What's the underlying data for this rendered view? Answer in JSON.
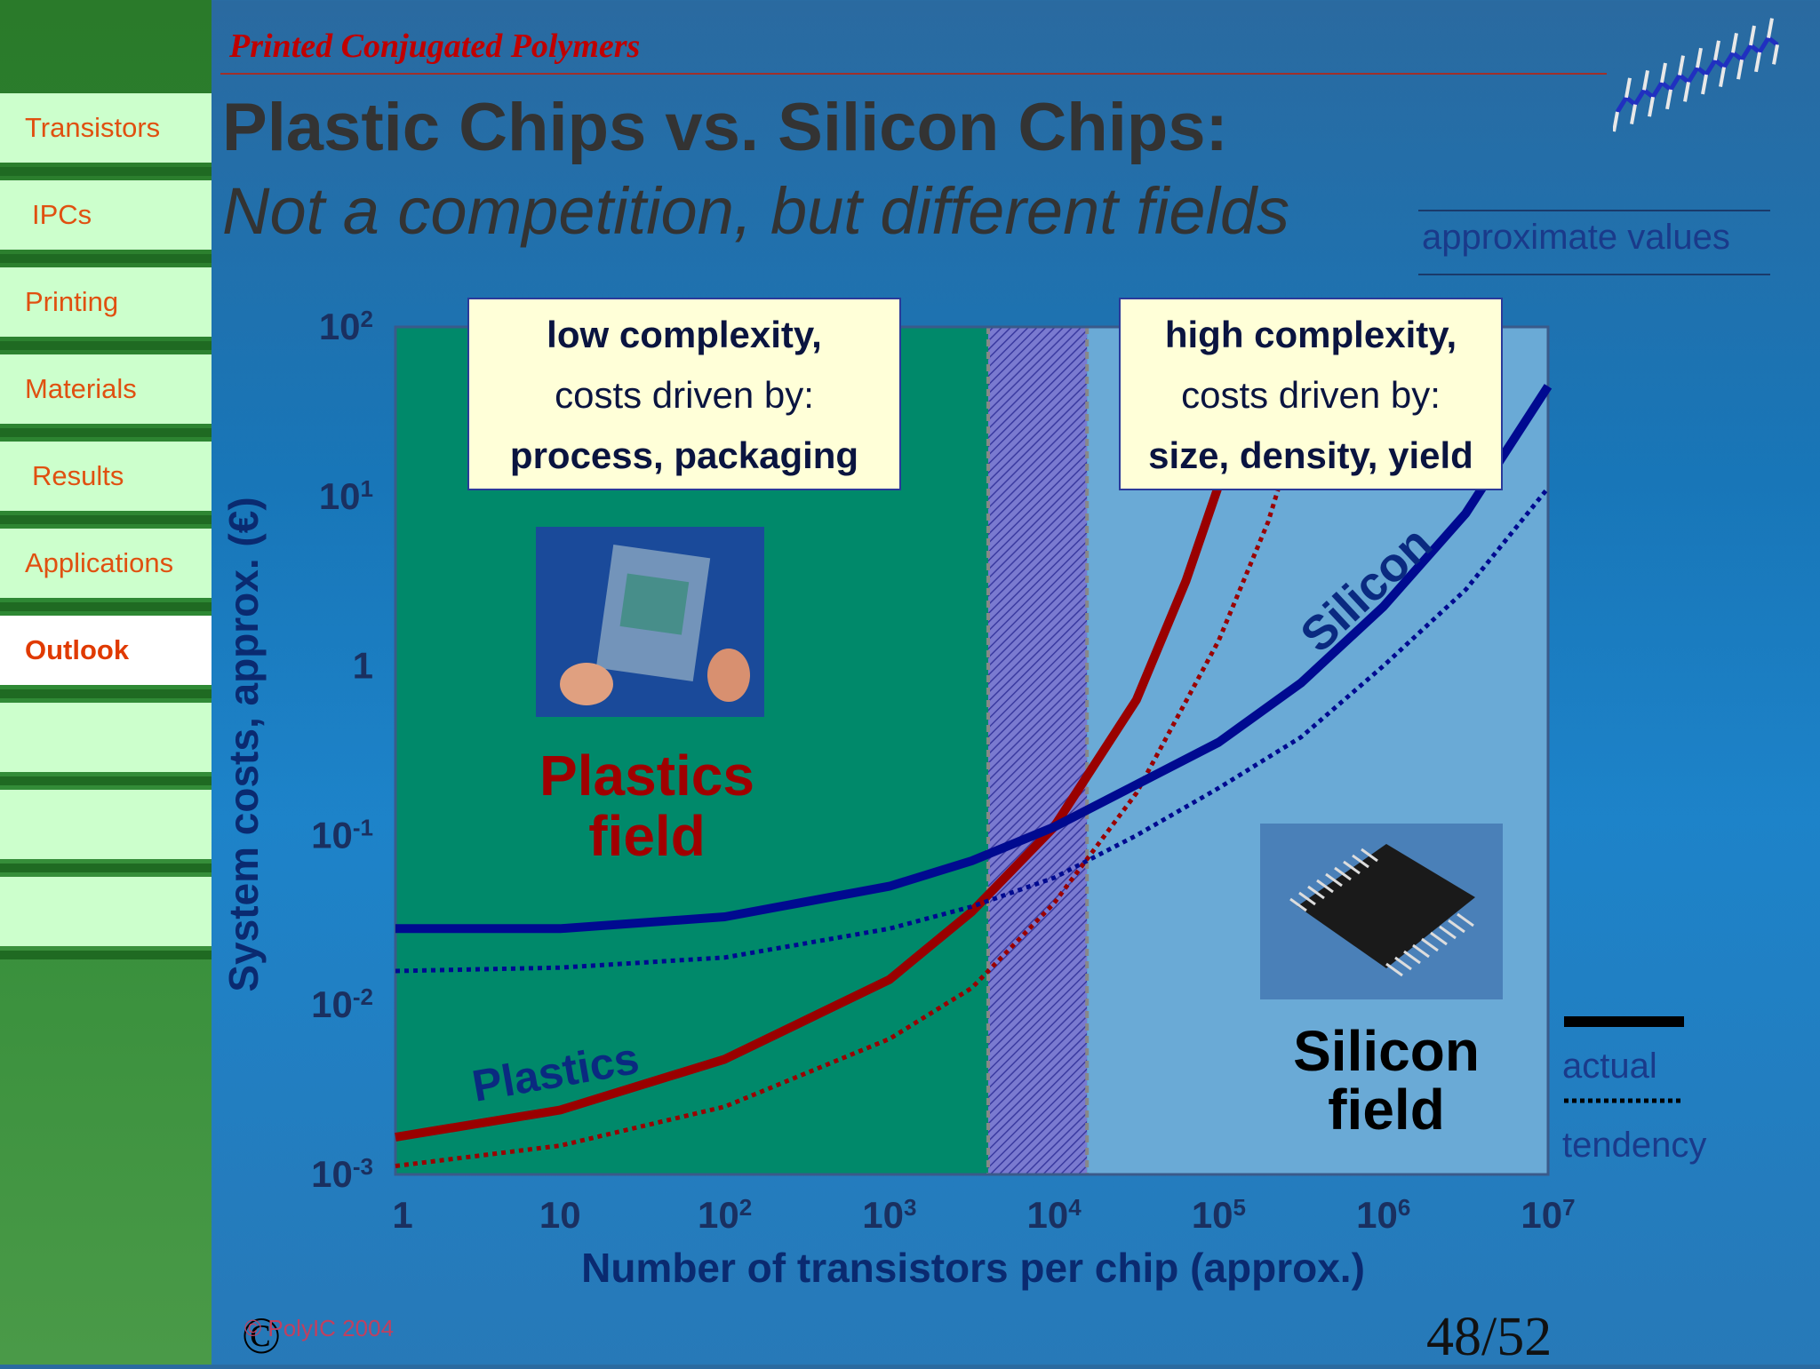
{
  "header": {
    "title": "Printed Conjugated Polymers"
  },
  "title": {
    "main": "Plastic Chips vs. Silicon Chips:",
    "sub": "Not a competition, but different fields"
  },
  "note": "approximate values",
  "sidebar": {
    "items": [
      {
        "label": "Transistors",
        "active": false
      },
      {
        "label": "IPCs",
        "active": false
      },
      {
        "label": "Printing",
        "active": false
      },
      {
        "label": "Materials",
        "active": false
      },
      {
        "label": "Results",
        "active": false
      },
      {
        "label": "Applications",
        "active": false
      },
      {
        "label": "Outlook",
        "active": true
      }
    ]
  },
  "chart_data": {
    "type": "line",
    "xlabel": "Number of transistors per chip (approx.)",
    "ylabel": "System costs, approx. (€)",
    "x_scale": "log",
    "y_scale": "log",
    "x_ticks": [
      {
        "value": 0,
        "base": "1",
        "exp": ""
      },
      {
        "value": 1,
        "base": "10",
        "exp": ""
      },
      {
        "value": 2,
        "base": "10",
        "exp": "2"
      },
      {
        "value": 3,
        "base": "10",
        "exp": "3"
      },
      {
        "value": 4,
        "base": "10",
        "exp": "4"
      },
      {
        "value": 5,
        "base": "10",
        "exp": "5"
      },
      {
        "value": 6,
        "base": "10",
        "exp": "6"
      },
      {
        "value": 7,
        "base": "10",
        "exp": "7"
      }
    ],
    "y_ticks": [
      {
        "value": 2,
        "base": "10",
        "exp": "2"
      },
      {
        "value": 1,
        "base": "10",
        "exp": "1"
      },
      {
        "value": 0,
        "base": "1",
        "exp": ""
      },
      {
        "value": -1,
        "base": "10",
        "exp": "-1"
      },
      {
        "value": -2,
        "base": "10",
        "exp": "-2"
      },
      {
        "value": -3,
        "base": "10",
        "exp": "-3"
      }
    ],
    "xlim_log10": [
      0,
      7
    ],
    "ylim_log10": [
      -3,
      2
    ],
    "regions": [
      {
        "name": "plastics-field",
        "from_log10": 0,
        "to_log10": 3.6,
        "color": "#00896a"
      },
      {
        "name": "transition-zone",
        "from_log10": 3.6,
        "to_log10": 4.2,
        "color": "#6a6ac0"
      },
      {
        "name": "silicon-field",
        "from_log10": 4.2,
        "to_log10": 7,
        "color": "#6aaad6"
      }
    ],
    "series": [
      {
        "name": "Plastics",
        "style": "actual",
        "color": "#9a0000",
        "points_log10": [
          [
            0,
            -2.78
          ],
          [
            1,
            -2.62
          ],
          [
            2,
            -2.32
          ],
          [
            3,
            -1.85
          ],
          [
            3.5,
            -1.45
          ],
          [
            4,
            -0.95
          ],
          [
            4.5,
            -0.2
          ],
          [
            4.8,
            0.5
          ],
          [
            5.1,
            1.35
          ]
        ]
      },
      {
        "name": "",
        "style": "tendency",
        "color": "#9a0000",
        "points_log10": [
          [
            0,
            -2.95
          ],
          [
            1,
            -2.83
          ],
          [
            2,
            -2.6
          ],
          [
            3,
            -2.2
          ],
          [
            3.5,
            -1.9
          ],
          [
            4,
            -1.4
          ],
          [
            4.5,
            -0.75
          ],
          [
            5,
            0.15
          ],
          [
            5.3,
            0.85
          ],
          [
            5.6,
            1.8
          ]
        ]
      },
      {
        "name": "Silicon",
        "style": "actual",
        "color": "#000a90",
        "points_log10": [
          [
            0,
            -1.55
          ],
          [
            1,
            -1.55
          ],
          [
            2,
            -1.48
          ],
          [
            3,
            -1.3
          ],
          [
            3.5,
            -1.15
          ],
          [
            4,
            -0.95
          ],
          [
            4.5,
            -0.7
          ],
          [
            5,
            -0.45
          ],
          [
            5.5,
            -0.1
          ],
          [
            6,
            0.35
          ],
          [
            6.5,
            0.9
          ],
          [
            7,
            1.65
          ]
        ]
      },
      {
        "name": "",
        "style": "tendency",
        "color": "#000a90",
        "points_log10": [
          [
            0,
            -1.8
          ],
          [
            1,
            -1.78
          ],
          [
            2,
            -1.72
          ],
          [
            3,
            -1.55
          ],
          [
            3.5,
            -1.42
          ],
          [
            4,
            -1.25
          ],
          [
            4.5,
            -1.0
          ],
          [
            5,
            -0.72
          ],
          [
            5.5,
            -0.42
          ],
          [
            6,
            0.0
          ],
          [
            6.5,
            0.45
          ],
          [
            7,
            1.05
          ]
        ]
      }
    ],
    "annotations": {
      "plastics_curve_label": "Plastics",
      "silicon_curve_label": "Silicon",
      "plastics_field": [
        "Plastics",
        "field"
      ],
      "silicon_field": [
        "Silicon",
        "field"
      ]
    },
    "callouts": {
      "left": [
        "low complexity,",
        "costs driven by:",
        "process, packaging"
      ],
      "right": [
        "high complexity,",
        "costs driven by:",
        "size, density, yield"
      ]
    },
    "legend": {
      "placement": "right",
      "actual": "actual",
      "tendency": "tendency"
    }
  },
  "footer": {
    "copyright": "© PolyIC 2004",
    "copyright_symbol": "©",
    "page": "48/52"
  },
  "colors": {
    "plastics": "#9a0000",
    "silicon": "#000a90",
    "nav_text": "#e05010",
    "nav_bg": "#ccffcc"
  }
}
